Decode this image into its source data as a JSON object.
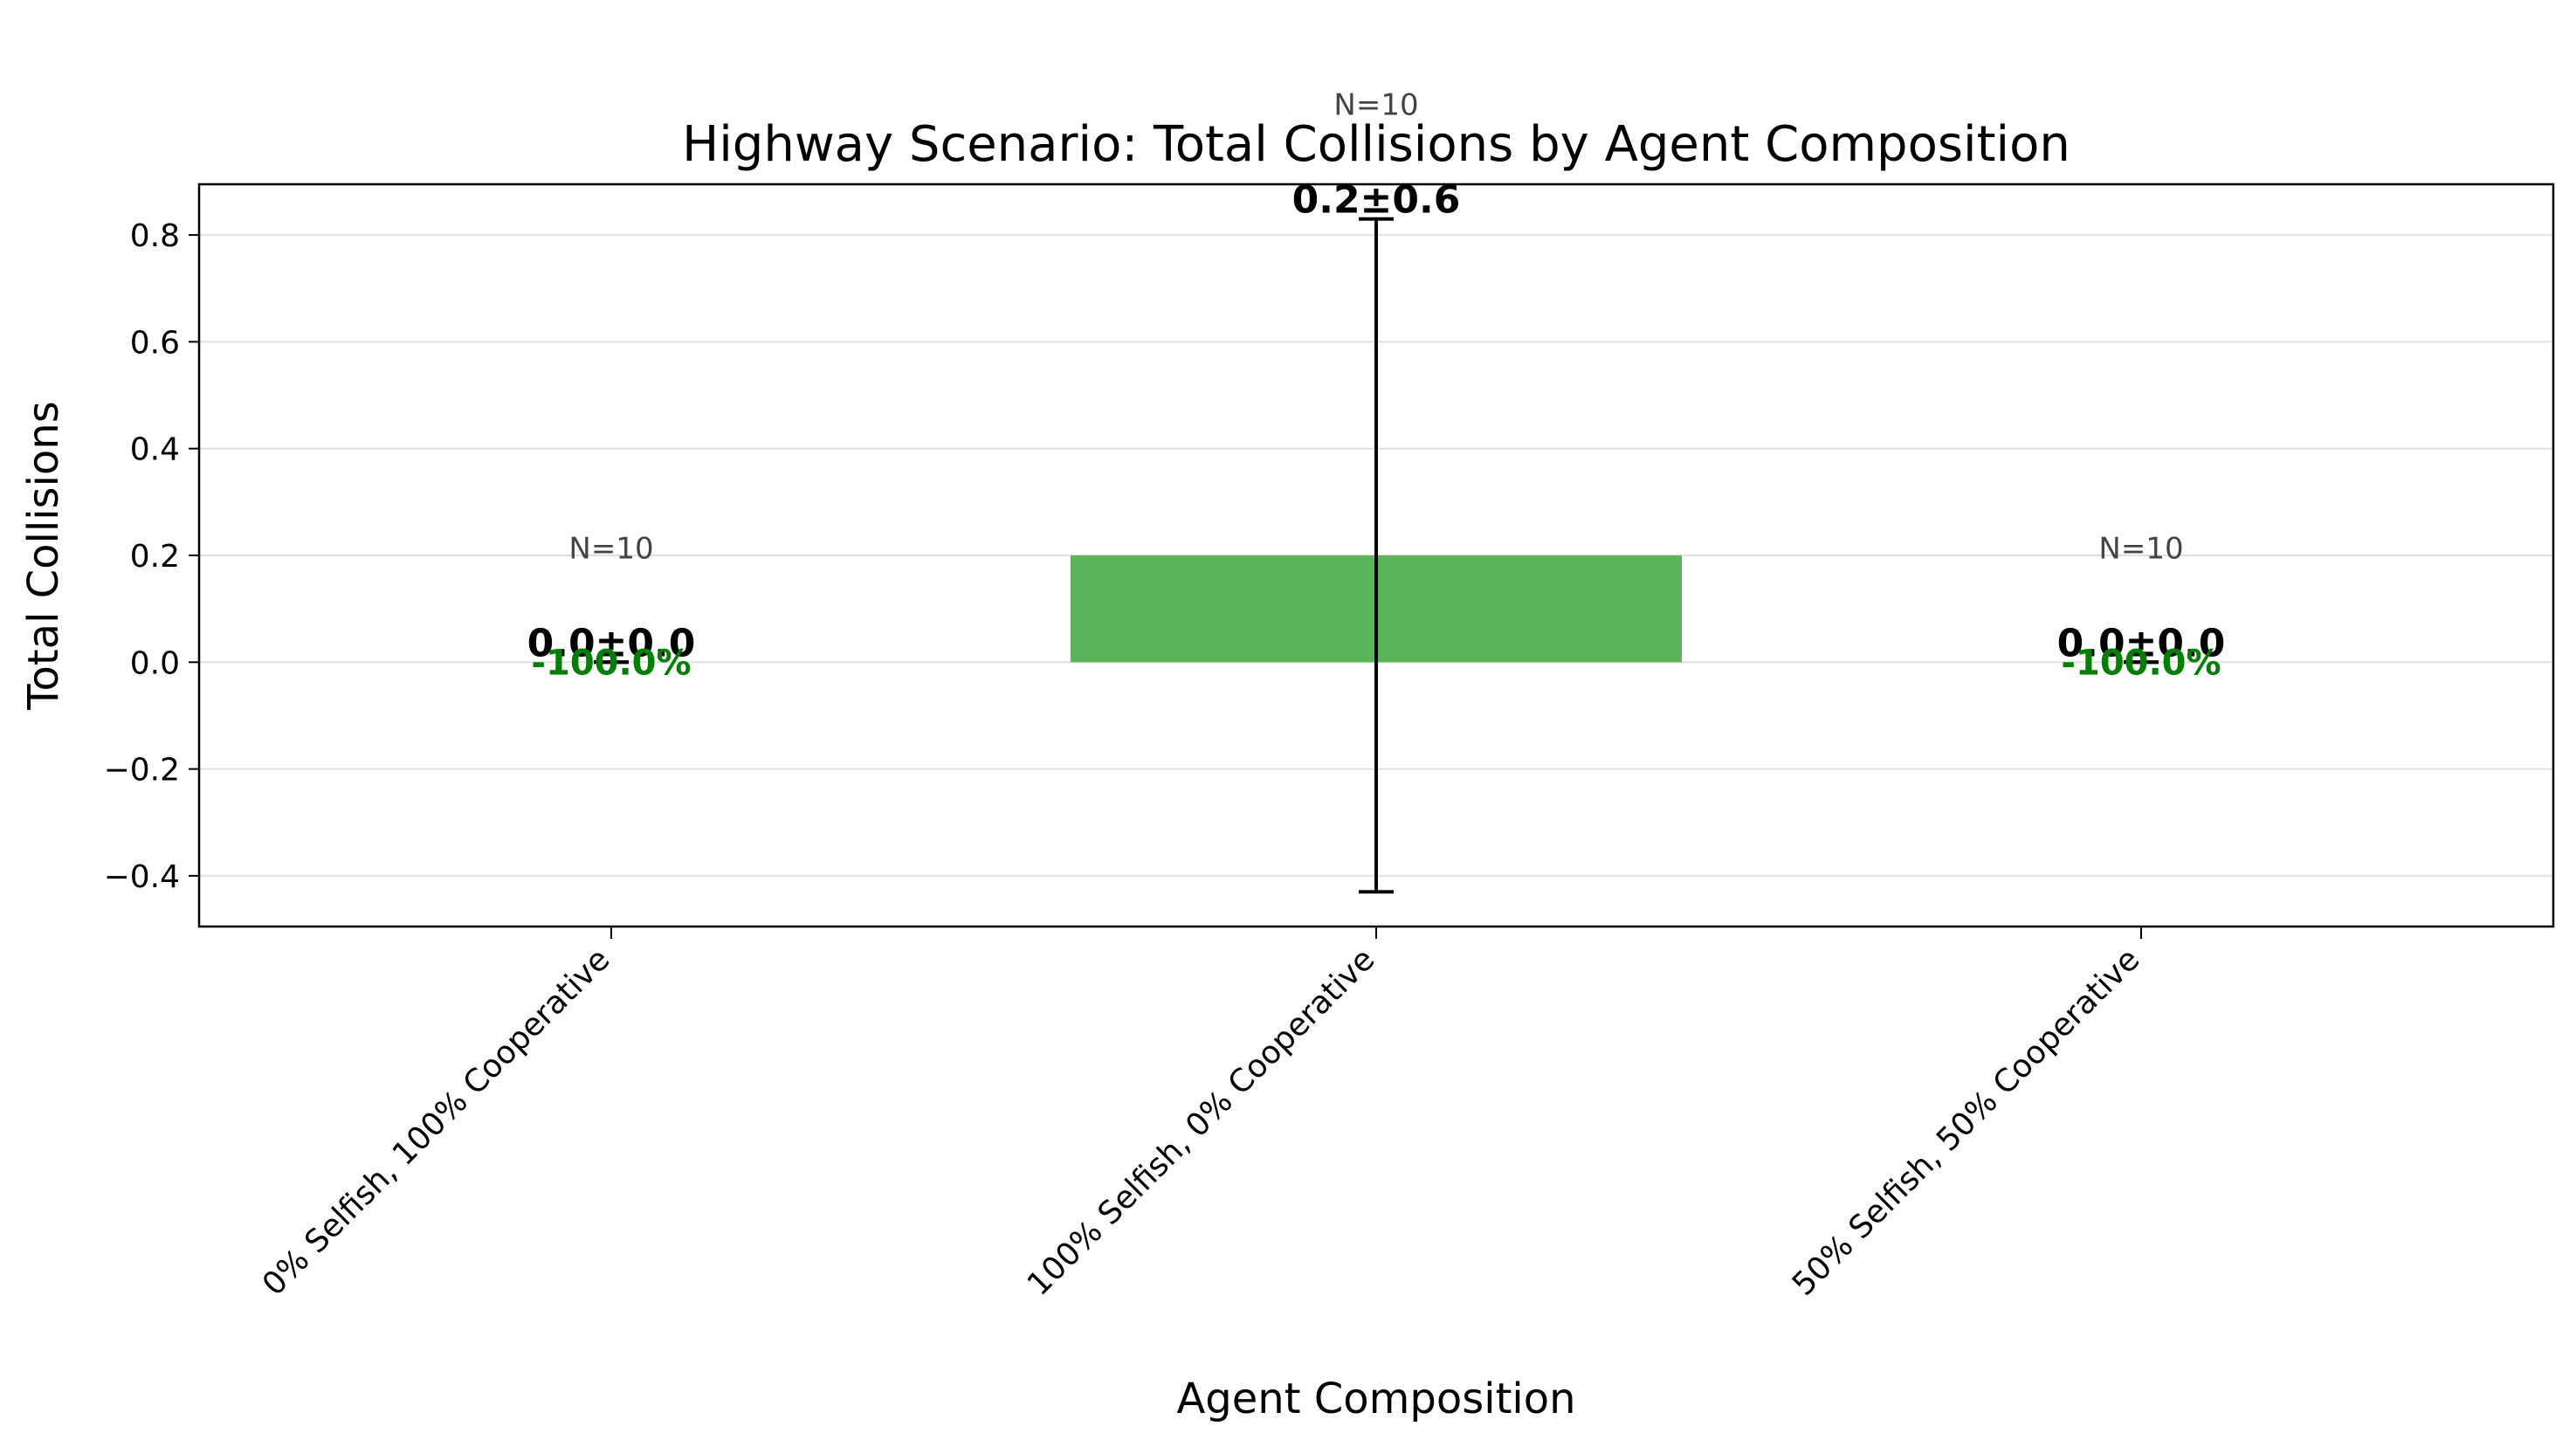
{
  "chart_data": {
    "type": "bar",
    "title": "Highway Scenario: Total Collisions by Agent Composition",
    "xlabel": "Agent Composition",
    "ylabel": "Total Collisions",
    "categories": [
      "0% Selfish, 100% Cooperative",
      "100% Selfish, 0% Cooperative",
      "50% Selfish, 50% Cooperative"
    ],
    "values": [
      0.0,
      0.2,
      0.0
    ],
    "errors": [
      0.0,
      0.63,
      0.0
    ],
    "value_labels": [
      "0.0±0.0",
      "0.2±0.6",
      "0.0±0.0"
    ],
    "n_labels": [
      "N=10",
      "N=10",
      "N=10"
    ],
    "pct_labels": [
      "-100.0%",
      "",
      "-100.0%"
    ],
    "ylim": [
      -0.495,
      0.895
    ],
    "yticks": [
      -0.4,
      -0.2,
      0.0,
      0.2,
      0.4,
      0.6,
      0.8
    ],
    "ytick_labels": [
      "−0.4",
      "−0.2",
      "0.0",
      "0.2",
      "0.4",
      "0.6",
      "0.8"
    ],
    "grid": true,
    "bar_color": "#5ab45a",
    "pct_color": "#008000",
    "error_color": "#000000"
  }
}
